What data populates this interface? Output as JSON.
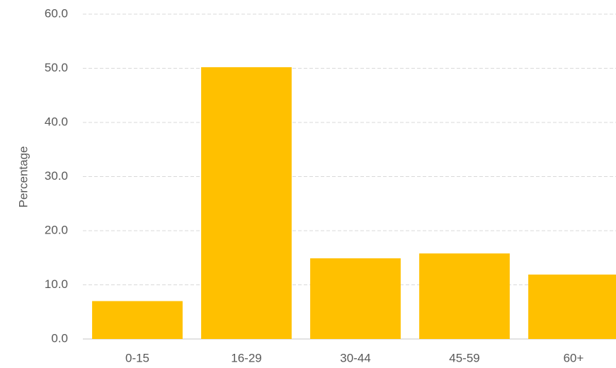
{
  "chart_data": {
    "type": "bar",
    "y_label": "Percentage",
    "categories": [
      "0-15",
      "16-29",
      "30-44",
      "45-59",
      "60+"
    ],
    "values": [
      7.0,
      50.2,
      14.9,
      15.8,
      11.9
    ],
    "color": "#ffc000",
    "ylim": [
      0,
      60
    ],
    "yticks": [
      {
        "value": 0,
        "label": "0.0"
      },
      {
        "value": 10,
        "label": "10.0"
      },
      {
        "value": 20,
        "label": "20.0"
      },
      {
        "value": 30,
        "label": "30.0"
      },
      {
        "value": 40,
        "label": "40.0"
      },
      {
        "value": 50,
        "label": "50.0"
      },
      {
        "value": 60,
        "label": "60.0"
      }
    ],
    "grid": true
  }
}
